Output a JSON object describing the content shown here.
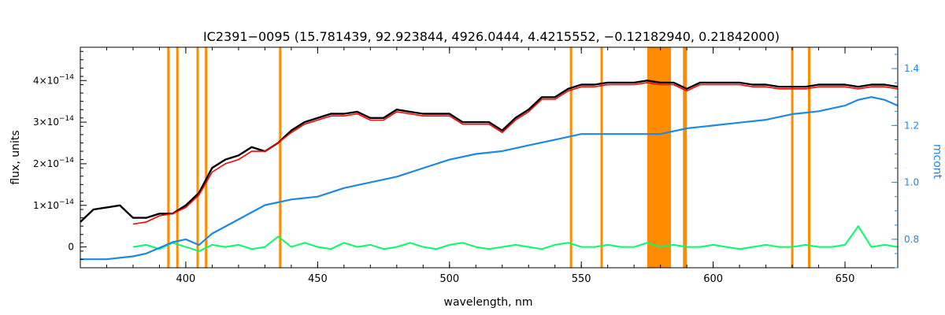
{
  "chart_data": {
    "type": "line",
    "title": "IC2391−0095    (15.781439, 92.923844, 4926.0444, 4.4215552, −0.12182940, 0.21842000)",
    "xlabel": "wavelength, nm",
    "ylabel": "flux, units",
    "y2label": "mcont",
    "xlim": [
      360,
      670
    ],
    "ylim": [
      -0.5,
      4.8
    ],
    "y2lim": [
      0.7,
      1.475
    ],
    "x_ticks": [
      400,
      450,
      500,
      550,
      600,
      650
    ],
    "x_tick_labels": [
      "400",
      "450",
      "500",
      "550",
      "600",
      "650"
    ],
    "y_ticks": [
      0,
      1,
      2,
      3,
      4
    ],
    "y_tick_labels": [
      "0",
      "1×10",
      "2×10",
      "3×10",
      "4×10"
    ],
    "y_tick_exponent": "−14",
    "y2_ticks": [
      0.8,
      1.0,
      1.2,
      1.4
    ],
    "y2_tick_labels": [
      "0.8",
      "1.0",
      "1.2",
      "1.4"
    ],
    "masked_lines_nm": [
      393.4,
      396.8,
      404.5,
      407.7,
      435.8,
      546.1,
      557.7,
      589.0,
      589.6,
      630.0,
      636.4
    ],
    "masked_band_nm": [
      575,
      584
    ],
    "colors": {
      "observed": "#000000",
      "model": "#ff0000",
      "model_masked": "#ffff00",
      "residual": "#00ff66",
      "continuum": "#1e88e5",
      "mask": "#ff8c00"
    },
    "series": [
      {
        "name": "observed",
        "x": [
          360,
          365,
          370,
          375,
          380,
          385,
          390,
          395,
          400,
          405,
          410,
          415,
          420,
          425,
          430,
          435,
          440,
          445,
          450,
          455,
          460,
          465,
          470,
          475,
          480,
          485,
          490,
          495,
          500,
          505,
          510,
          515,
          520,
          525,
          530,
          535,
          540,
          545,
          550,
          555,
          560,
          565,
          570,
          575,
          580,
          585,
          590,
          595,
          600,
          605,
          610,
          615,
          620,
          625,
          630,
          635,
          640,
          645,
          650,
          655,
          660,
          665,
          670
        ],
        "values": [
          0.6,
          0.9,
          0.95,
          1.0,
          0.7,
          0.7,
          0.8,
          0.8,
          1.0,
          1.3,
          1.9,
          2.1,
          2.2,
          2.4,
          2.3,
          2.5,
          2.8,
          3.0,
          3.1,
          3.2,
          3.2,
          3.25,
          3.1,
          3.1,
          3.3,
          3.25,
          3.2,
          3.2,
          3.2,
          3.0,
          3.0,
          3.0,
          2.8,
          3.1,
          3.3,
          3.6,
          3.6,
          3.8,
          3.9,
          3.9,
          3.95,
          3.95,
          3.95,
          4.0,
          3.95,
          3.95,
          3.8,
          3.95,
          3.95,
          3.95,
          3.95,
          3.9,
          3.9,
          3.85,
          3.85,
          3.85,
          3.9,
          3.9,
          3.9,
          3.85,
          3.9,
          3.9,
          3.85
        ]
      },
      {
        "name": "model",
        "x": [
          380,
          385,
          390,
          395,
          400,
          405,
          410,
          415,
          420,
          425,
          430,
          435,
          440,
          445,
          450,
          455,
          460,
          465,
          470,
          475,
          480,
          485,
          490,
          495,
          500,
          505,
          510,
          515,
          520,
          525,
          530,
          535,
          540,
          545,
          550,
          555,
          560,
          565,
          570,
          575,
          580,
          585,
          590,
          595,
          600,
          605,
          610,
          615,
          620,
          625,
          630,
          635,
          640,
          645,
          650,
          655,
          660,
          665,
          670
        ],
        "values": [
          0.55,
          0.6,
          0.75,
          0.8,
          0.95,
          1.25,
          1.8,
          2.0,
          2.1,
          2.3,
          2.3,
          2.5,
          2.75,
          2.95,
          3.05,
          3.15,
          3.15,
          3.2,
          3.05,
          3.05,
          3.25,
          3.2,
          3.15,
          3.15,
          3.15,
          2.95,
          2.95,
          2.95,
          2.75,
          3.05,
          3.25,
          3.55,
          3.55,
          3.75,
          3.85,
          3.85,
          3.9,
          3.9,
          3.9,
          3.95,
          3.9,
          3.9,
          3.75,
          3.9,
          3.9,
          3.9,
          3.9,
          3.85,
          3.85,
          3.8,
          3.8,
          3.8,
          3.85,
          3.85,
          3.85,
          3.8,
          3.85,
          3.85,
          3.8
        ]
      },
      {
        "name": "continuum",
        "x": [
          360,
          370,
          380,
          385,
          390,
          395,
          400,
          405,
          410,
          420,
          430,
          440,
          450,
          460,
          470,
          480,
          490,
          500,
          510,
          520,
          530,
          540,
          550,
          560,
          570,
          580,
          590,
          600,
          610,
          620,
          630,
          640,
          650,
          655,
          660,
          665,
          670
        ],
        "values": [
          0.73,
          0.73,
          0.74,
          0.75,
          0.77,
          0.79,
          0.8,
          0.78,
          0.82,
          0.87,
          0.92,
          0.94,
          0.95,
          0.98,
          1.0,
          1.02,
          1.05,
          1.08,
          1.1,
          1.11,
          1.13,
          1.15,
          1.17,
          1.17,
          1.17,
          1.17,
          1.19,
          1.2,
          1.21,
          1.22,
          1.24,
          1.25,
          1.27,
          1.29,
          1.3,
          1.29,
          1.27
        ]
      },
      {
        "name": "residual",
        "x": [
          380,
          385,
          390,
          395,
          400,
          405,
          410,
          415,
          420,
          425,
          430,
          435,
          440,
          445,
          450,
          455,
          460,
          465,
          470,
          475,
          480,
          485,
          490,
          495,
          500,
          505,
          510,
          515,
          520,
          525,
          530,
          535,
          540,
          545,
          550,
          555,
          560,
          565,
          570,
          575,
          580,
          585,
          590,
          595,
          600,
          605,
          610,
          615,
          620,
          625,
          630,
          635,
          640,
          645,
          650,
          655,
          660,
          665,
          670
        ],
        "values": [
          0.0,
          0.05,
          -0.05,
          0.1,
          0.0,
          -0.1,
          0.05,
          0.0,
          0.05,
          -0.05,
          0.0,
          0.25,
          0.0,
          0.1,
          0.0,
          -0.05,
          0.1,
          0.0,
          0.05,
          -0.05,
          0.0,
          0.1,
          0.0,
          -0.05,
          0.05,
          0.1,
          0.0,
          -0.05,
          0.0,
          0.05,
          0.0,
          -0.05,
          0.05,
          0.1,
          0.0,
          0.0,
          0.05,
          0.0,
          0.0,
          0.1,
          0.0,
          0.05,
          0.0,
          0.0,
          0.05,
          0.0,
          -0.05,
          0.0,
          0.05,
          0.0,
          0.0,
          0.05,
          0.0,
          0.0,
          0.05,
          0.5,
          0.0,
          0.05,
          0.0
        ]
      }
    ]
  }
}
